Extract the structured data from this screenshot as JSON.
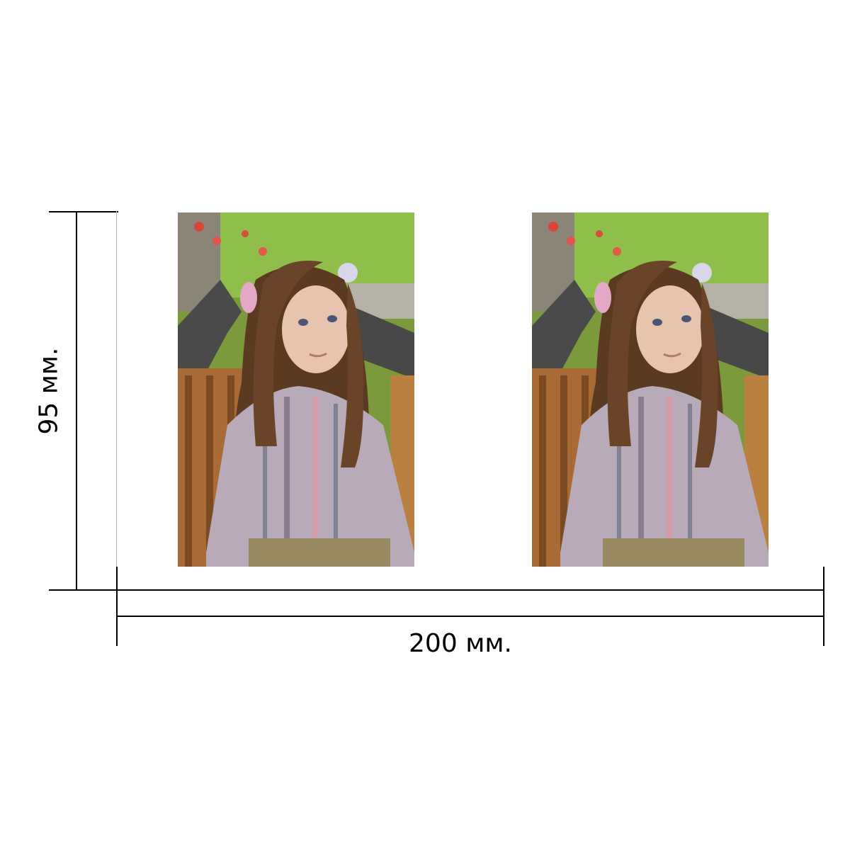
{
  "dimensions": {
    "height_label": "95 мм.",
    "width_label": "200 мм."
  },
  "photos": [
    {
      "subject": "girl-portrait",
      "copy": 1
    },
    {
      "subject": "girl-portrait",
      "copy": 2
    }
  ],
  "colors": {
    "lines": "#000000",
    "background": "#ffffff"
  }
}
